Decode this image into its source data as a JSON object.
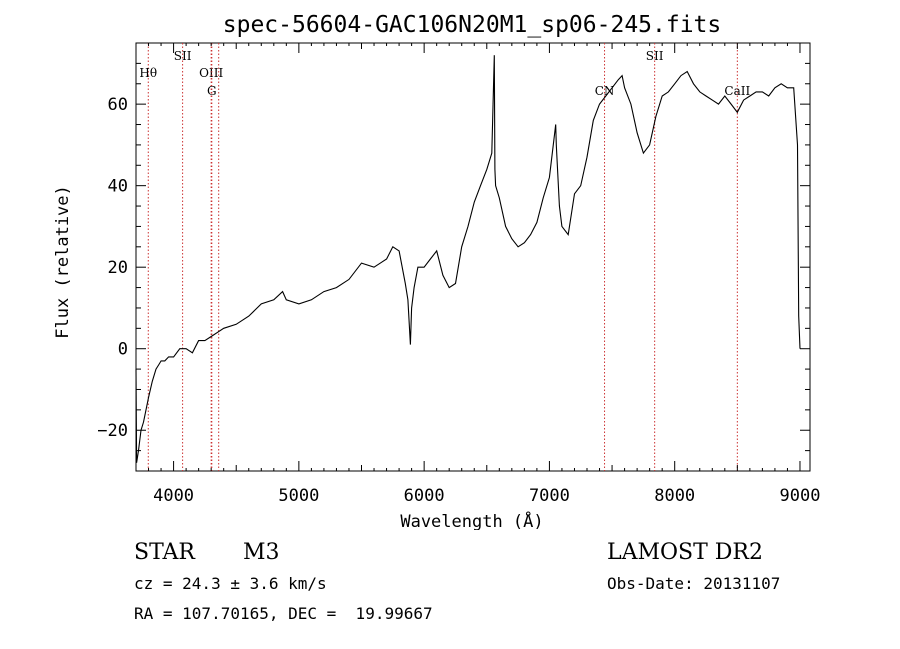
{
  "chart_data": {
    "type": "line",
    "title": "spec-56604-GAC106N20M1_sp06-245.fits",
    "xlabel": "Wavelength (Å)",
    "ylabel": "Flux (relative)",
    "xlim": [
      3700,
      9080
    ],
    "ylim": [
      -30,
      75
    ],
    "xticks": [
      4000,
      5000,
      6000,
      7000,
      8000,
      9000
    ],
    "xtick_labels": [
      "4000",
      "5000",
      "6000",
      "7000",
      "8000",
      "9000"
    ],
    "yticks": [
      -20,
      0,
      20,
      40,
      60
    ],
    "ytick_labels": [
      "−20",
      "0",
      "20",
      "40",
      "60"
    ],
    "grid": false,
    "line_color": "#000000",
    "marker_color": "#cc3333",
    "series": [
      {
        "x": [
          3700,
          3705,
          3720,
          3740,
          3760,
          3780,
          3800,
          3830,
          3860,
          3880,
          3900,
          3930,
          3960,
          4000,
          4050,
          4100,
          4150,
          4200,
          4250,
          4300,
          4350,
          4400,
          4500,
          4600,
          4700,
          4800,
          4870,
          4900,
          5000,
          5100,
          5200,
          5300,
          5400,
          5500,
          5600,
          5700,
          5750,
          5800,
          5850,
          5870,
          5890,
          5900,
          5920,
          5950,
          6000,
          6050,
          6100,
          6150,
          6200,
          6250,
          6300,
          6350,
          6400,
          6450,
          6500,
          6540,
          6560,
          6565,
          6570,
          6600,
          6650,
          6700,
          6750,
          6800,
          6850,
          6900,
          6950,
          7000,
          7050,
          7055,
          7080,
          7100,
          7150,
          7200,
          7250,
          7300,
          7350,
          7400,
          7450,
          7500,
          7550,
          7580,
          7600,
          7650,
          7700,
          7750,
          7800,
          7850,
          7900,
          7950,
          8000,
          8050,
          8100,
          8150,
          8200,
          8250,
          8300,
          8350,
          8400,
          8450,
          8500,
          8550,
          8600,
          8650,
          8700,
          8750,
          8800,
          8850,
          8900,
          8950,
          8980,
          8990,
          9000
        ],
        "y": [
          -5,
          -28,
          -25,
          -20,
          -18,
          -15,
          -12,
          -8,
          -5,
          -4,
          -3,
          -3,
          -2,
          -2,
          0,
          0,
          -1,
          2,
          2,
          3,
          4,
          5,
          6,
          8,
          11,
          12,
          14,
          12,
          11,
          12,
          14,
          15,
          17,
          21,
          20,
          22,
          25,
          24,
          16,
          12,
          1,
          10,
          15,
          20,
          20,
          22,
          24,
          18,
          15,
          16,
          25,
          30,
          36,
          40,
          44,
          48,
          72,
          44,
          40,
          37,
          30,
          27,
          25,
          26,
          28,
          31,
          37,
          42,
          55,
          50,
          35,
          30,
          28,
          38,
          40,
          47,
          56,
          60,
          62,
          64,
          66,
          67,
          64,
          60,
          53,
          48,
          50,
          57,
          62,
          63,
          65,
          67,
          68,
          65,
          63,
          62,
          61,
          60,
          62,
          60,
          58,
          61,
          62,
          63,
          63,
          62,
          64,
          65,
          64,
          64,
          50,
          8,
          0
        ]
      }
    ],
    "annotations": [
      {
        "label": "Hθ",
        "x": 3798,
        "row": 1
      },
      {
        "label": "SII",
        "x": 4072,
        "row": 0
      },
      {
        "label": "OIII",
        "x": 4300,
        "row": 1
      },
      {
        "label": "G",
        "x": 4305,
        "row": 2
      },
      {
        "label": "",
        "x": 4360,
        "row": 1
      },
      {
        "label": "CN",
        "x": 7440,
        "row": 2
      },
      {
        "label": "SII",
        "x": 7840,
        "row": 0
      },
      {
        "label": "CaII",
        "x": 8500,
        "row": 2
      }
    ]
  },
  "info": {
    "object_class": "STAR",
    "subclass": "M3",
    "survey": "LAMOST DR2",
    "cz": "cz = 24.3 ± 3.6 km/s",
    "obs_date": "Obs-Date: 20131107",
    "coords": "RA = 107.70165, DEC =  19.99667"
  }
}
